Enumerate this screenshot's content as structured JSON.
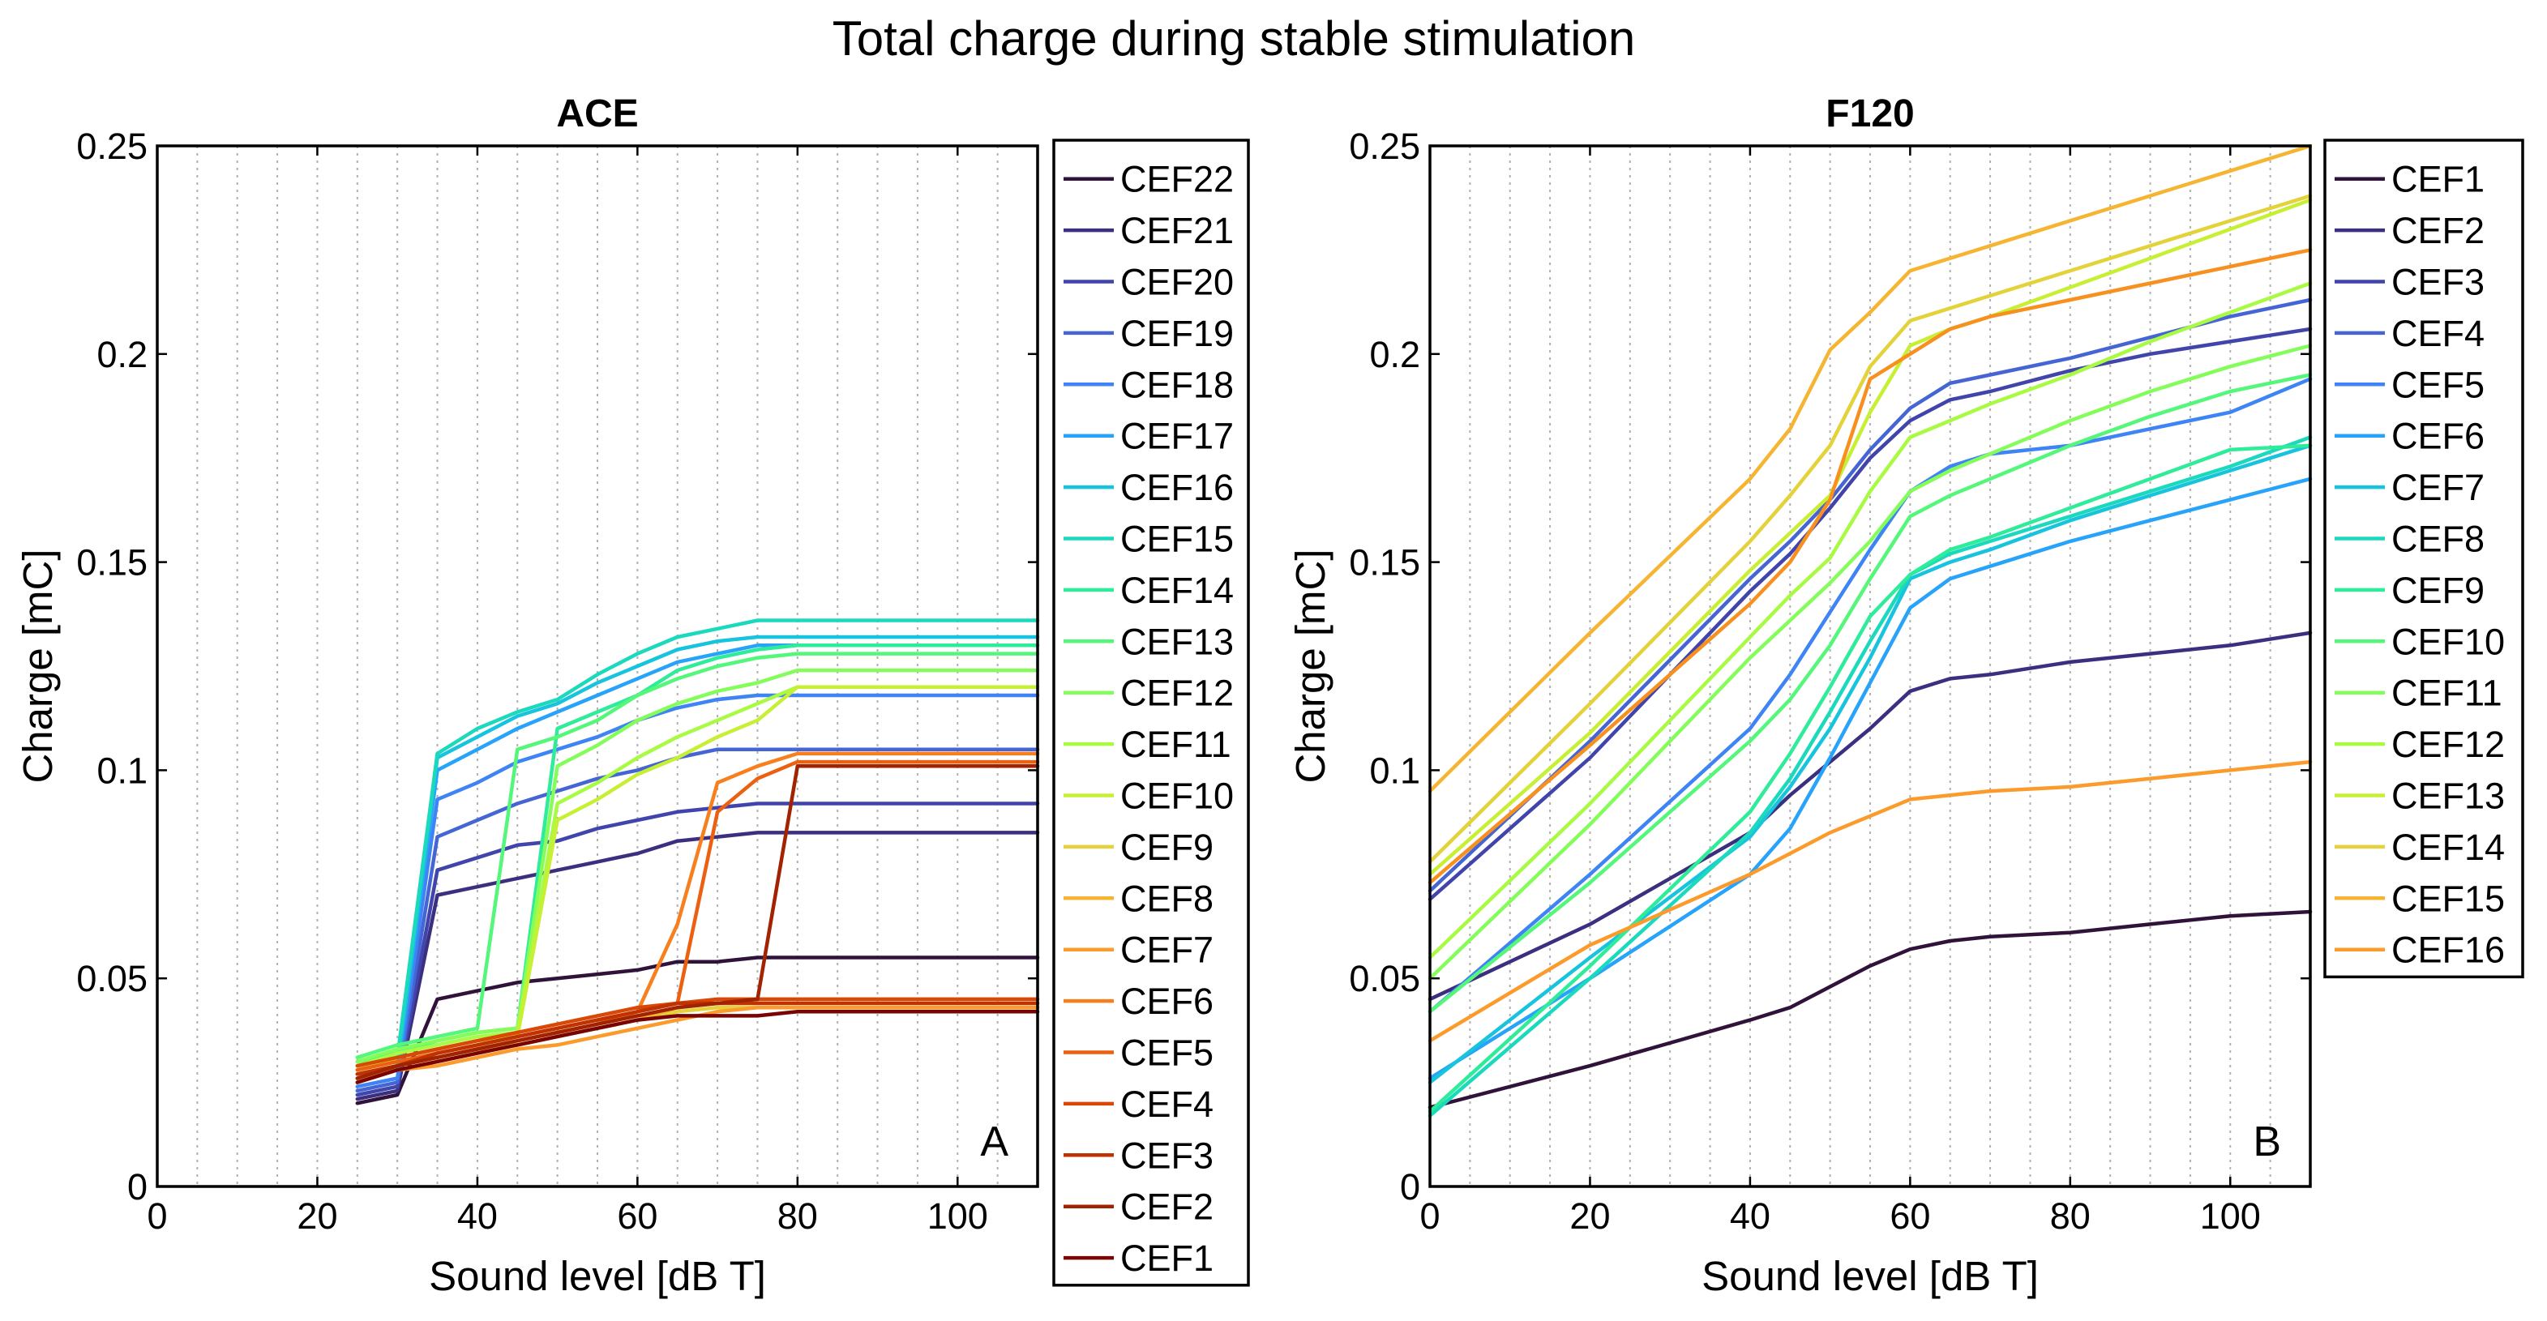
{
  "figure_title": "Total charge during stable stimulation",
  "chart_data": [
    {
      "type": "line",
      "title": "ACE",
      "panel_label": "A",
      "xlabel": "Sound level [dB T]",
      "ylabel": "Charge [mC]",
      "xlim": [
        0,
        110
      ],
      "ylim": [
        0,
        0.25
      ],
      "xticks": [
        0,
        20,
        40,
        60,
        80,
        100
      ],
      "xtick_labels": [
        "0",
        "20",
        "40",
        "60",
        "80",
        "100"
      ],
      "yticks": [
        0,
        0.05,
        0.1,
        0.15,
        0.2,
        0.25
      ],
      "ytick_labels": [
        "0",
        "0.05",
        "0.1",
        "0.15",
        "0.2",
        "0.25"
      ],
      "grid_x": true,
      "legend_position": "outside-right",
      "x": [
        25,
        30,
        35,
        40,
        45,
        50,
        55,
        60,
        65,
        70,
        75,
        80,
        90,
        100,
        110
      ],
      "series": [
        {
          "name": "CEF22",
          "color": "#30123b",
          "values": [
            0.02,
            0.022,
            0.045,
            0.047,
            0.049,
            0.05,
            0.051,
            0.052,
            0.054,
            0.054,
            0.055,
            0.055,
            0.055,
            0.055,
            0.055
          ]
        },
        {
          "name": "CEF21",
          "color": "#3b2f80",
          "values": [
            0.021,
            0.023,
            0.07,
            0.072,
            0.074,
            0.076,
            0.078,
            0.08,
            0.083,
            0.084,
            0.085,
            0.085,
            0.085,
            0.085,
            0.085
          ]
        },
        {
          "name": "CEF20",
          "color": "#4145ab",
          "values": [
            0.022,
            0.024,
            0.076,
            0.079,
            0.082,
            0.083,
            0.086,
            0.088,
            0.09,
            0.091,
            0.092,
            0.092,
            0.092,
            0.092,
            0.092
          ]
        },
        {
          "name": "CEF19",
          "color": "#4565d4",
          "values": [
            0.023,
            0.025,
            0.084,
            0.088,
            0.092,
            0.095,
            0.098,
            0.1,
            0.103,
            0.105,
            0.105,
            0.105,
            0.105,
            0.105,
            0.105
          ]
        },
        {
          "name": "CEF18",
          "color": "#3f84f4",
          "values": [
            0.024,
            0.026,
            0.093,
            0.097,
            0.102,
            0.105,
            0.108,
            0.112,
            0.115,
            0.117,
            0.118,
            0.118,
            0.118,
            0.118,
            0.118
          ]
        },
        {
          "name": "CEF17",
          "color": "#28a3fa",
          "values": [
            0.026,
            0.028,
            0.1,
            0.105,
            0.11,
            0.114,
            0.118,
            0.122,
            0.126,
            0.128,
            0.13,
            0.13,
            0.13,
            0.13,
            0.13
          ]
        },
        {
          "name": "CEF16",
          "color": "#18c3dd",
          "values": [
            0.027,
            0.029,
            0.103,
            0.108,
            0.113,
            0.116,
            0.121,
            0.125,
            0.129,
            0.131,
            0.132,
            0.132,
            0.132,
            0.132,
            0.132
          ]
        },
        {
          "name": "CEF15",
          "color": "#1ad9bc",
          "values": [
            0.029,
            0.031,
            0.104,
            0.11,
            0.114,
            0.117,
            0.123,
            0.128,
            0.132,
            0.134,
            0.136,
            0.136,
            0.136,
            0.136,
            0.136
          ]
        },
        {
          "name": "CEF14",
          "color": "#2eec9a",
          "values": [
            0.03,
            0.032,
            0.035,
            0.037,
            0.038,
            0.11,
            0.114,
            0.118,
            0.124,
            0.127,
            0.129,
            0.13,
            0.13,
            0.13,
            0.13
          ]
        },
        {
          "name": "CEF13",
          "color": "#54f77a",
          "values": [
            0.031,
            0.034,
            0.036,
            0.038,
            0.105,
            0.108,
            0.112,
            0.118,
            0.122,
            0.125,
            0.127,
            0.128,
            0.128,
            0.128,
            0.128
          ]
        },
        {
          "name": "CEF12",
          "color": "#84fd5b",
          "values": [
            0.03,
            0.033,
            0.035,
            0.037,
            0.038,
            0.101,
            0.106,
            0.112,
            0.116,
            0.119,
            0.121,
            0.124,
            0.124,
            0.124,
            0.124
          ]
        },
        {
          "name": "CEF11",
          "color": "#a8fb42",
          "values": [
            0.029,
            0.032,
            0.034,
            0.036,
            0.037,
            0.092,
            0.097,
            0.103,
            0.108,
            0.112,
            0.116,
            0.12,
            0.12,
            0.12,
            0.12
          ]
        },
        {
          "name": "CEF10",
          "color": "#c7ef34",
          "values": [
            0.028,
            0.031,
            0.033,
            0.035,
            0.036,
            0.088,
            0.093,
            0.099,
            0.103,
            0.108,
            0.112,
            0.12,
            0.12,
            0.12,
            0.12
          ]
        },
        {
          "name": "CEF9",
          "color": "#e3d239",
          "values": [
            0.027,
            0.029,
            0.031,
            0.033,
            0.034,
            0.036,
            0.038,
            0.04,
            0.042,
            0.043,
            0.043,
            0.043,
            0.043,
            0.043,
            0.043
          ]
        },
        {
          "name": "CEF8",
          "color": "#f5b533",
          "values": [
            0.026,
            0.028,
            0.03,
            0.032,
            0.034,
            0.036,
            0.038,
            0.04,
            0.043,
            0.044,
            0.044,
            0.044,
            0.044,
            0.044,
            0.044
          ]
        },
        {
          "name": "CEF7",
          "color": "#fb9b2c",
          "values": [
            0.025,
            0.028,
            0.029,
            0.031,
            0.033,
            0.034,
            0.036,
            0.038,
            0.04,
            0.042,
            0.043,
            0.043,
            0.043,
            0.043,
            0.043
          ]
        },
        {
          "name": "CEF6",
          "color": "#f77f1e",
          "values": [
            0.027,
            0.029,
            0.031,
            0.033,
            0.035,
            0.037,
            0.039,
            0.042,
            0.063,
            0.097,
            0.101,
            0.104,
            0.104,
            0.104,
            0.104
          ]
        },
        {
          "name": "CEF5",
          "color": "#ec6111",
          "values": [
            0.028,
            0.03,
            0.032,
            0.034,
            0.036,
            0.038,
            0.04,
            0.042,
            0.044,
            0.09,
            0.098,
            0.102,
            0.102,
            0.102,
            0.102
          ]
        },
        {
          "name": "CEF4",
          "color": "#d94806",
          "values": [
            0.029,
            0.031,
            0.033,
            0.035,
            0.037,
            0.039,
            0.041,
            0.043,
            0.044,
            0.045,
            0.045,
            0.045,
            0.045,
            0.045,
            0.045
          ]
        },
        {
          "name": "CEF3",
          "color": "#bf3302",
          "values": [
            0.027,
            0.029,
            0.032,
            0.034,
            0.036,
            0.038,
            0.04,
            0.042,
            0.044,
            0.044,
            0.044,
            0.044,
            0.044,
            0.044,
            0.044
          ]
        },
        {
          "name": "CEF2",
          "color": "#a12301",
          "values": [
            0.026,
            0.029,
            0.031,
            0.033,
            0.035,
            0.037,
            0.039,
            0.041,
            0.043,
            0.044,
            0.045,
            0.101,
            0.101,
            0.101,
            0.101
          ]
        },
        {
          "name": "CEF1",
          "color": "#7a0403",
          "values": [
            0.025,
            0.028,
            0.03,
            0.032,
            0.034,
            0.036,
            0.038,
            0.04,
            0.041,
            0.041,
            0.041,
            0.042,
            0.042,
            0.042,
            0.042
          ]
        }
      ]
    },
    {
      "type": "line",
      "title": "F120",
      "panel_label": "B",
      "xlabel": "Sound level [dB T]",
      "ylabel": "Charge [mC]",
      "xlim": [
        0,
        110
      ],
      "ylim": [
        0,
        0.25
      ],
      "xticks": [
        0,
        20,
        40,
        60,
        80,
        100
      ],
      "xtick_labels": [
        "0",
        "20",
        "40",
        "60",
        "80",
        "100"
      ],
      "yticks": [
        0,
        0.05,
        0.1,
        0.15,
        0.2,
        0.25
      ],
      "ytick_labels": [
        "0",
        "0.05",
        "0.1",
        "0.15",
        "0.2",
        "0.25"
      ],
      "grid_x": true,
      "legend_position": "outside-right",
      "x": [
        0,
        20,
        40,
        45,
        50,
        55,
        60,
        65,
        70,
        80,
        90,
        100,
        110
      ],
      "series": [
        {
          "name": "CEF1",
          "color": "#30123b",
          "values": [
            0.019,
            0.029,
            0.04,
            0.043,
            0.048,
            0.053,
            0.057,
            0.059,
            0.06,
            0.061,
            0.063,
            0.065,
            0.066
          ]
        },
        {
          "name": "CEF2",
          "color": "#3b2f80",
          "values": [
            0.045,
            0.063,
            0.085,
            0.094,
            0.102,
            0.11,
            0.119,
            0.122,
            0.123,
            0.126,
            0.128,
            0.13,
            0.133
          ]
        },
        {
          "name": "CEF3",
          "color": "#4145ab",
          "values": [
            0.069,
            0.103,
            0.143,
            0.152,
            0.163,
            0.175,
            0.184,
            0.189,
            0.191,
            0.196,
            0.2,
            0.203,
            0.206
          ]
        },
        {
          "name": "CEF4",
          "color": "#4565d4",
          "values": [
            0.071,
            0.107,
            0.146,
            0.155,
            0.165,
            0.177,
            0.187,
            0.193,
            0.195,
            0.199,
            0.204,
            0.209,
            0.213
          ]
        },
        {
          "name": "CEF5",
          "color": "#3f84f4",
          "values": [
            0.042,
            0.075,
            0.11,
            0.123,
            0.138,
            0.153,
            0.167,
            0.173,
            0.176,
            0.178,
            0.182,
            0.186,
            0.194
          ]
        },
        {
          "name": "CEF6",
          "color": "#28a3fa",
          "values": [
            0.026,
            0.05,
            0.075,
            0.086,
            0.103,
            0.121,
            0.139,
            0.146,
            0.149,
            0.155,
            0.16,
            0.165,
            0.17
          ]
        },
        {
          "name": "CEF7",
          "color": "#18c3dd",
          "values": [
            0.025,
            0.055,
            0.084,
            0.096,
            0.11,
            0.127,
            0.146,
            0.15,
            0.153,
            0.16,
            0.166,
            0.172,
            0.178
          ]
        },
        {
          "name": "CEF8",
          "color": "#1ad9bc",
          "values": [
            0.017,
            0.05,
            0.085,
            0.098,
            0.114,
            0.131,
            0.147,
            0.152,
            0.155,
            0.161,
            0.167,
            0.173,
            0.18
          ]
        },
        {
          "name": "CEF9",
          "color": "#2eec9a",
          "values": [
            0.018,
            0.053,
            0.09,
            0.104,
            0.12,
            0.137,
            0.147,
            0.153,
            0.156,
            0.163,
            0.17,
            0.177,
            0.178
          ]
        },
        {
          "name": "CEF10",
          "color": "#54f77a",
          "values": [
            0.042,
            0.073,
            0.107,
            0.117,
            0.13,
            0.146,
            0.161,
            0.166,
            0.17,
            0.178,
            0.185,
            0.191,
            0.195
          ]
        },
        {
          "name": "CEF11",
          "color": "#84fd5b",
          "values": [
            0.05,
            0.087,
            0.127,
            0.136,
            0.145,
            0.155,
            0.167,
            0.172,
            0.176,
            0.184,
            0.191,
            0.197,
            0.202
          ]
        },
        {
          "name": "CEF12",
          "color": "#a8fb42",
          "values": [
            0.055,
            0.092,
            0.132,
            0.142,
            0.151,
            0.167,
            0.18,
            0.184,
            0.188,
            0.195,
            0.203,
            0.21,
            0.217
          ]
        },
        {
          "name": "CEF13",
          "color": "#c7ef34",
          "values": [
            0.075,
            0.109,
            0.148,
            0.157,
            0.166,
            0.186,
            0.202,
            0.206,
            0.209,
            0.216,
            0.223,
            0.23,
            0.237
          ]
        },
        {
          "name": "CEF14",
          "color": "#e3d239",
          "values": [
            0.078,
            0.116,
            0.155,
            0.166,
            0.178,
            0.197,
            0.208,
            0.211,
            0.214,
            0.22,
            0.226,
            0.232,
            0.238
          ]
        },
        {
          "name": "CEF15",
          "color": "#f5b533",
          "values": [
            0.095,
            0.133,
            0.17,
            0.182,
            0.201,
            0.21,
            0.22,
            0.223,
            0.226,
            0.232,
            0.238,
            0.244,
            0.25
          ]
        },
        {
          "name": "CEF16",
          "color": "#fb9b2c",
          "values": [
            0.035,
            0.058,
            0.075,
            0.08,
            0.085,
            0.089,
            0.093,
            0.094,
            0.095,
            0.096,
            0.098,
            0.1,
            0.102
          ]
        },
        {
          "name": "",
          "color": "#f7901f",
          "values": [
            0.073,
            0.106,
            0.14,
            0.15,
            0.165,
            0.194,
            0.2,
            0.206,
            0.209,
            0.213,
            0.217,
            0.221,
            0.225
          ]
        }
      ]
    }
  ]
}
